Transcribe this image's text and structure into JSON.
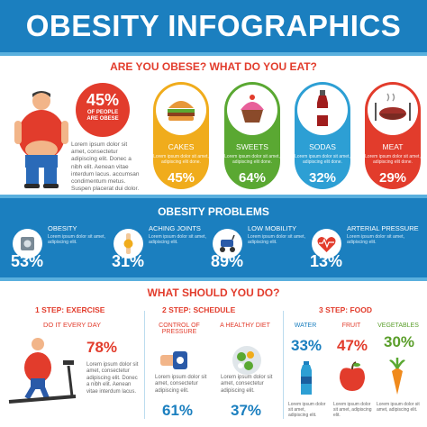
{
  "header": {
    "title": "OBESITY INFOGRAPHICS"
  },
  "section1": {
    "title": "ARE YOU OBESE?   WHAT DO YOU EAT?",
    "obese_pct": "45%",
    "obese_text": "OF PEOPLE ARE OBESE",
    "lorem": "Lorem ipsum dolor sit amet, consectetur adipiscing elit. Donec a nibh elit. Aenean vitae interdum lacus. accumsan condimentum metus. Suspen placerat dui dolor.",
    "foods": [
      {
        "label": "CAKES",
        "lorem": "Lorem ipsum dolor sit amet, adipiscing elit done.",
        "pct": "45%",
        "color": "#f0ac1c",
        "icon": "burger-icon"
      },
      {
        "label": "SWEETS",
        "lorem": "Lorem ipsum dolor sit amet, adipiscing elit done.",
        "pct": "64%",
        "color": "#5aa832",
        "icon": "cupcake-icon"
      },
      {
        "label": "SODAS",
        "lorem": "Lorem ipsum dolor sit amet, adipiscing elit done.",
        "pct": "32%",
        "color": "#2d9fd4",
        "icon": "soda-bottle-icon"
      },
      {
        "label": "MEAT",
        "lorem": "Lorem ipsum dolor sit amet, adipiscing elit done.",
        "pct": "29%",
        "color": "#e23c2c",
        "icon": "meat-plate-icon"
      }
    ]
  },
  "section2": {
    "title": "OBESITY PROBLEMS",
    "items": [
      {
        "name": "OBESITY",
        "lorem1": "Lorem ipsum dolor sit amet,",
        "lorem2": "adipiscing elit.",
        "pct": "53%",
        "icon": "scale-icon"
      },
      {
        "name": "ACHING JOINTS",
        "lorem1": "Lorem ipsum dolor sit amet,",
        "lorem2": "adipiscing elit.",
        "pct": "31%",
        "icon": "joint-icon"
      },
      {
        "name": "LOW MOBILITY",
        "lorem1": "Lorem ipsum dolor sit amet,",
        "lorem2": "adipiscing elit.",
        "pct": "89%",
        "icon": "mobility-scooter-icon"
      },
      {
        "name": "ARTERIAL PRESSURE",
        "lorem1": "Lorem ipsum dolor sit amet,",
        "lorem2": "adipiscing elit.",
        "pct": "13%",
        "icon": "heart-pulse-icon"
      }
    ]
  },
  "section3": {
    "title": "WHAT SHOULD YOU DO?",
    "exercise": {
      "heading": "1 STEP: EXERCISE",
      "sub": "DO IT EVERY DAY",
      "pct": "78%",
      "lorem": "Lorem ipsum dolor sit amet, consectetur adipiscing elit. Donec a nibh elit. Aenean vitae interdum lacus."
    },
    "schedule": {
      "heading": "2 STEP: SCHEDULE",
      "item1": "CONTROL OF PRESSURE",
      "item2": "A HEALTHY DIET",
      "lorem": "Lorem ipsum dolor sit amet, consectetur adipiscing elit.",
      "pct1": "61%",
      "pct2": "37%"
    },
    "food": {
      "heading": "3 STEP: FOOD",
      "items": [
        {
          "label": "WATER",
          "pct": "33%",
          "lorem": "Lorem ipsum dolor sit amet, adipiscing elit.",
          "icon": "water-bottle-icon"
        },
        {
          "label": "FRUIT",
          "pct": "47%",
          "lorem": "Lorem ipsum dolor sit amet, adipiscing elit.",
          "icon": "apple-icon"
        },
        {
          "label": "VEGETABLES",
          "pct": "30%",
          "lorem": "Lorem ipsum dolor sit amet, adipiscing elit.",
          "icon": "carrot-icon"
        }
      ]
    }
  }
}
